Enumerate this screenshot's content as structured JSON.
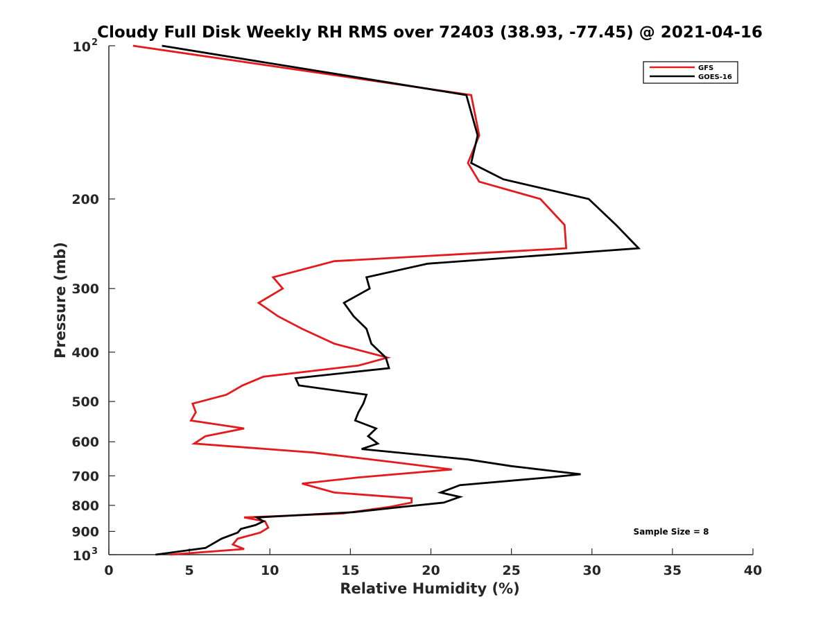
{
  "chart_data": {
    "type": "line",
    "title": "Cloudy Full Disk Weekly RH RMS over 72403 (38.93, -77.45) @ 2021-04-16",
    "xlabel": "Relative Humidity (%)",
    "ylabel": "Pressure (mb)",
    "xlim": [
      0,
      40
    ],
    "ylim": [
      100,
      1000
    ],
    "y_scale": "log",
    "y_reversed": true,
    "grid": false,
    "legend_position": "top-right",
    "x_ticks": [
      "0",
      "5",
      "10",
      "15",
      "20",
      "25",
      "30",
      "35",
      "40"
    ],
    "y_ticks": [
      {
        "value": 100,
        "base": "10",
        "exp": "2"
      },
      {
        "value": 200,
        "label": "200"
      },
      {
        "value": 300,
        "label": "300"
      },
      {
        "value": 400,
        "label": "400"
      },
      {
        "value": 500,
        "label": "500"
      },
      {
        "value": 600,
        "label": "600"
      },
      {
        "value": 700,
        "label": "700"
      },
      {
        "value": 800,
        "label": "800"
      },
      {
        "value": 900,
        "label": "900"
      },
      {
        "value": 1000,
        "base": "10",
        "exp": "3"
      }
    ],
    "annotation": "Sample Size = 8",
    "series": [
      {
        "name": "GFS",
        "color": "#e41a1c",
        "points": [
          [
            1.5,
            100
          ],
          [
            22.5,
            125
          ],
          [
            23.0,
            150
          ],
          [
            22.3,
            170
          ],
          [
            23.0,
            185
          ],
          [
            26.8,
            200
          ],
          [
            28.3,
            225
          ],
          [
            28.4,
            250
          ],
          [
            14.0,
            265
          ],
          [
            10.2,
            285
          ],
          [
            10.8,
            300
          ],
          [
            9.3,
            320
          ],
          [
            10.5,
            340
          ],
          [
            12.0,
            360
          ],
          [
            14.0,
            385
          ],
          [
            17.3,
            410
          ],
          [
            15.5,
            425
          ],
          [
            9.6,
            447
          ],
          [
            8.3,
            465
          ],
          [
            7.3,
            485
          ],
          [
            5.2,
            505
          ],
          [
            5.4,
            525
          ],
          [
            5.1,
            545
          ],
          [
            8.4,
            565
          ],
          [
            6.0,
            585
          ],
          [
            5.3,
            605
          ],
          [
            12.7,
            630
          ],
          [
            18.0,
            660
          ],
          [
            21.3,
            680
          ],
          [
            15.5,
            705
          ],
          [
            12.0,
            725
          ],
          [
            14.0,
            755
          ],
          [
            18.8,
            775
          ],
          [
            18.8,
            790
          ],
          [
            17.5,
            805
          ],
          [
            14.5,
            830
          ],
          [
            8.4,
            845
          ],
          [
            9.7,
            860
          ],
          [
            9.9,
            885
          ],
          [
            9.4,
            905
          ],
          [
            8.0,
            930
          ],
          [
            7.7,
            955
          ],
          [
            8.4,
            975
          ],
          [
            3.8,
            1000
          ]
        ]
      },
      {
        "name": "GOES-16",
        "color": "#000000",
        "points": [
          [
            3.3,
            100
          ],
          [
            22.2,
            125
          ],
          [
            22.9,
            150
          ],
          [
            22.5,
            170
          ],
          [
            24.5,
            183
          ],
          [
            29.8,
            200
          ],
          [
            31.5,
            225
          ],
          [
            32.9,
            250
          ],
          [
            19.8,
            268
          ],
          [
            16.0,
            285
          ],
          [
            16.2,
            300
          ],
          [
            14.6,
            320
          ],
          [
            15.2,
            340
          ],
          [
            16.0,
            360
          ],
          [
            16.3,
            385
          ],
          [
            17.2,
            410
          ],
          [
            17.4,
            430
          ],
          [
            11.6,
            450
          ],
          [
            11.8,
            465
          ],
          [
            16.0,
            485
          ],
          [
            15.8,
            505
          ],
          [
            15.5,
            525
          ],
          [
            15.3,
            545
          ],
          [
            16.6,
            565
          ],
          [
            16.1,
            585
          ],
          [
            16.7,
            605
          ],
          [
            15.7,
            620
          ],
          [
            22.3,
            650
          ],
          [
            25.0,
            670
          ],
          [
            29.3,
            695
          ],
          [
            27.3,
            705
          ],
          [
            21.8,
            730
          ],
          [
            20.6,
            755
          ],
          [
            21.8,
            770
          ],
          [
            20.8,
            790
          ],
          [
            18.3,
            805
          ],
          [
            15.2,
            825
          ],
          [
            9.2,
            845
          ],
          [
            9.6,
            860
          ],
          [
            9.1,
            875
          ],
          [
            8.2,
            890
          ],
          [
            8.0,
            905
          ],
          [
            7.0,
            930
          ],
          [
            6.0,
            970
          ],
          [
            2.9,
            1000
          ]
        ]
      }
    ]
  }
}
